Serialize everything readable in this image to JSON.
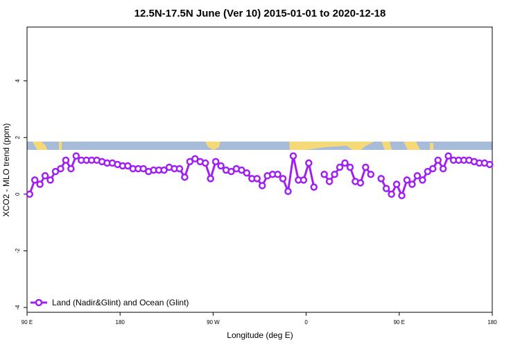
{
  "chart_data": {
    "type": "line",
    "title": "12.5N-17.5N June (Ver 10)   2015-01-01 to 2020-12-18",
    "x_label": "Longitude (deg E)",
    "y_label": "XCO2 - MLO trend (ppm)",
    "xlim": [
      90,
      540
    ],
    "ylim": [
      -4.17,
      5.9
    ],
    "xticks": [
      {
        "value": 90,
        "label": "90 E"
      },
      180,
      {
        "value": 270,
        "label": "90 W"
      },
      {
        "value": 360,
        "label": "0"
      },
      {
        "value": 450,
        "label": "90 E"
      },
      {
        "value": 540,
        "label": "180"
      }
    ],
    "yticks": [
      -4,
      -2,
      0,
      2,
      4
    ],
    "legend": "bottom-left",
    "x": [
      92.5,
      97.5,
      102.5,
      107.5,
      112.5,
      117.5,
      122.5,
      127.5,
      132.5,
      137.5,
      142.5,
      147.5,
      152.5,
      157.5,
      162.5,
      167.5,
      172.5,
      177.5,
      182.5,
      187.5,
      192.5,
      197.5,
      202.5,
      207.5,
      212.5,
      217.5,
      222.5,
      227.5,
      232.5,
      237.5,
      242.5,
      247.5,
      252.5,
      257.5,
      262.5,
      267.5,
      272.5,
      277.5,
      282.5,
      287.5,
      292.5,
      297.5,
      302.5,
      307.5,
      312.5,
      317.5,
      322.5,
      327.5,
      332.5,
      337.5,
      342.5,
      347.5,
      352.5,
      357.5,
      362.5,
      367.5,
      372.5,
      377.5,
      382.5,
      387.5,
      392.5,
      397.5,
      402.5,
      407.5,
      412.5,
      417.5,
      422.5,
      427.5,
      432.5,
      437.5,
      442.5,
      447.5,
      452.5,
      457.5,
      462.5,
      467.5,
      472.5,
      477.5,
      482.5,
      487.5,
      492.5,
      497.5,
      502.5,
      507.5,
      512.5,
      517.5,
      522.5,
      527.5,
      532.5,
      537.5
    ],
    "series": [
      {
        "name": "Land (Nadir&Glint) and Ocean (Glint)",
        "color": "#a020f0",
        "values": [
          0.0,
          0.5,
          0.35,
          0.65,
          0.5,
          0.8,
          0.9,
          1.2,
          0.9,
          1.35,
          1.2,
          1.2,
          1.2,
          1.2,
          1.15,
          1.1,
          1.1,
          1.05,
          1.0,
          1.0,
          0.9,
          0.9,
          0.9,
          0.8,
          0.85,
          0.85,
          0.85,
          0.95,
          0.9,
          0.9,
          0.6,
          1.15,
          1.25,
          1.15,
          1.1,
          0.55,
          1.15,
          1.0,
          0.85,
          0.8,
          0.9,
          0.85,
          0.75,
          0.55,
          0.55,
          0.3,
          0.65,
          0.7,
          0.7,
          0.55,
          0.1,
          1.35,
          0.5,
          0.5,
          1.1,
          0.25,
          null,
          0.7,
          0.45,
          0.7,
          0.95,
          1.1,
          0.95,
          0.45,
          0.4,
          0.95,
          0.7,
          null,
          0.55,
          0.2,
          0.0,
          0.35,
          -0.05,
          0.5,
          0.35,
          0.65,
          0.5,
          0.8,
          0.9,
          1.2,
          0.9,
          1.35,
          1.2,
          1.2,
          1.2,
          1.2,
          1.15,
          1.1,
          1.1,
          1.05
        ]
      }
    ]
  }
}
